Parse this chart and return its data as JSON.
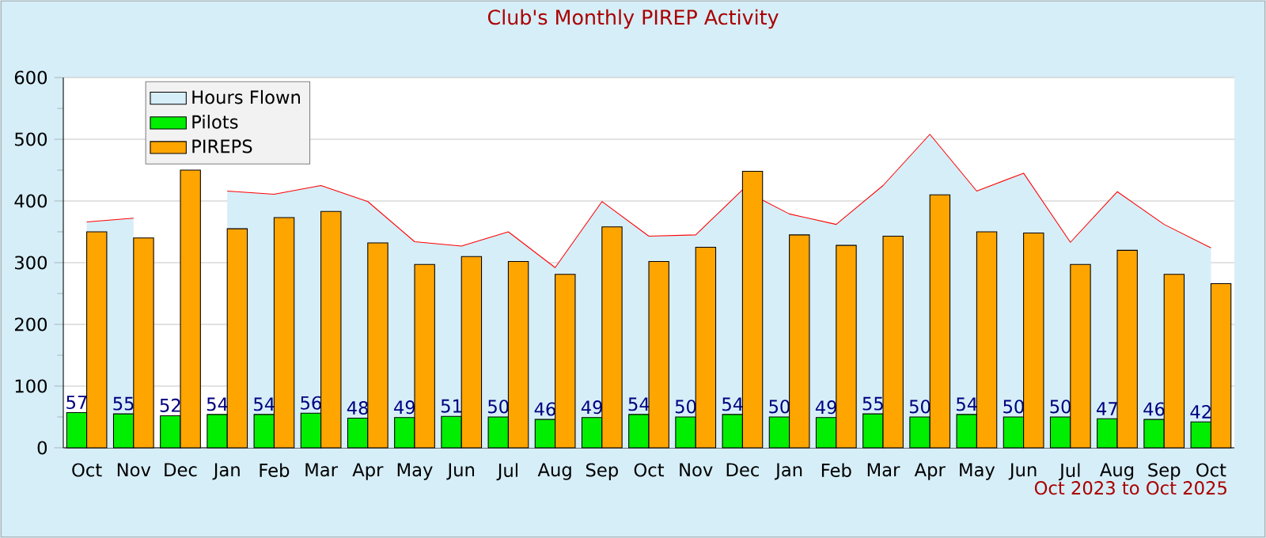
{
  "chart_data": {
    "type": "bar",
    "title": "Club's Monthly PIREP Activity",
    "categories": [
      "Oct",
      "Nov",
      "Dec",
      "Jan",
      "Feb",
      "Mar",
      "Apr",
      "May",
      "Jun",
      "Jul",
      "Aug",
      "Sep",
      "Oct",
      "Nov",
      "Dec",
      "Jan",
      "Feb",
      "Mar",
      "Apr",
      "May",
      "Jun",
      "Jul",
      "Aug",
      "Sep",
      "Oct"
    ],
    "series": [
      {
        "name": "Hours Flown",
        "type": "area",
        "color": "#d6eef8",
        "values": [
          366,
          372,
          null,
          416,
          411,
          425,
          399,
          334,
          327,
          350,
          292,
          399,
          343,
          345,
          418,
          379,
          362,
          425,
          508,
          416,
          445,
          333,
          415,
          362,
          324
        ]
      },
      {
        "name": "Pilots",
        "color": "#00ee00",
        "values": [
          57,
          55,
          52,
          54,
          54,
          56,
          48,
          49,
          51,
          50,
          46,
          49,
          54,
          50,
          54,
          50,
          49,
          55,
          50,
          54,
          50,
          50,
          47,
          46,
          42
        ],
        "value_labels": [
          "57",
          "55",
          "52",
          "54",
          "54",
          "56",
          "48",
          "49",
          "51",
          "50",
          "46",
          "49",
          "54",
          "50",
          "54",
          "50",
          "49",
          "55",
          "50",
          "54",
          "50",
          "50",
          "47",
          "46",
          "42"
        ]
      },
      {
        "name": "PIREPS",
        "color": "#ffa500",
        "values": [
          350,
          340,
          450,
          355,
          373,
          383,
          332,
          297,
          310,
          302,
          281,
          358,
          302,
          325,
          448,
          345,
          328,
          343,
          410,
          350,
          348,
          297,
          320,
          281,
          266
        ]
      }
    ],
    "ylim": [
      0,
      600
    ],
    "yticks": [
      0,
      100,
      200,
      300,
      400,
      500,
      600
    ],
    "grid": "y",
    "legend": "top left",
    "annotations": [
      "Oct 2023 to Oct 2025"
    ]
  }
}
